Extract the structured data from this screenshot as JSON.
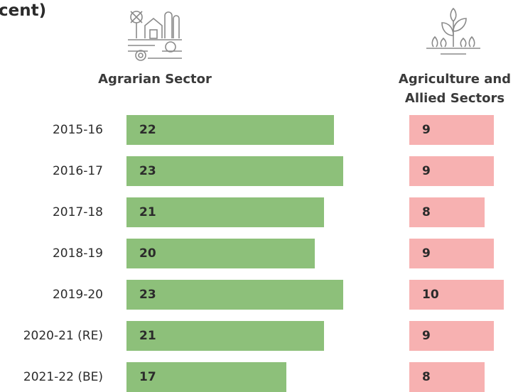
{
  "title": "cent)",
  "chart_data": [
    {
      "type": "bar",
      "orientation": "horizontal",
      "title": "Agrarian Sector",
      "categories": [
        "2015-16",
        "2016-17",
        "2017-18",
        "2018-19",
        "2019-20",
        "2020-21 (RE)",
        "2021-22 (BE)"
      ],
      "values": [
        22,
        23,
        21,
        20,
        23,
        21,
        17
      ],
      "color": "#8dc07a",
      "xlim": [
        0,
        24
      ]
    },
    {
      "type": "bar",
      "orientation": "horizontal",
      "title": "Agriculture and Allied Sectors",
      "values": [
        9,
        9,
        8,
        9,
        10,
        9,
        8
      ],
      "color": "#f7b1b1",
      "xlim": [
        0,
        11
      ]
    }
  ]
}
